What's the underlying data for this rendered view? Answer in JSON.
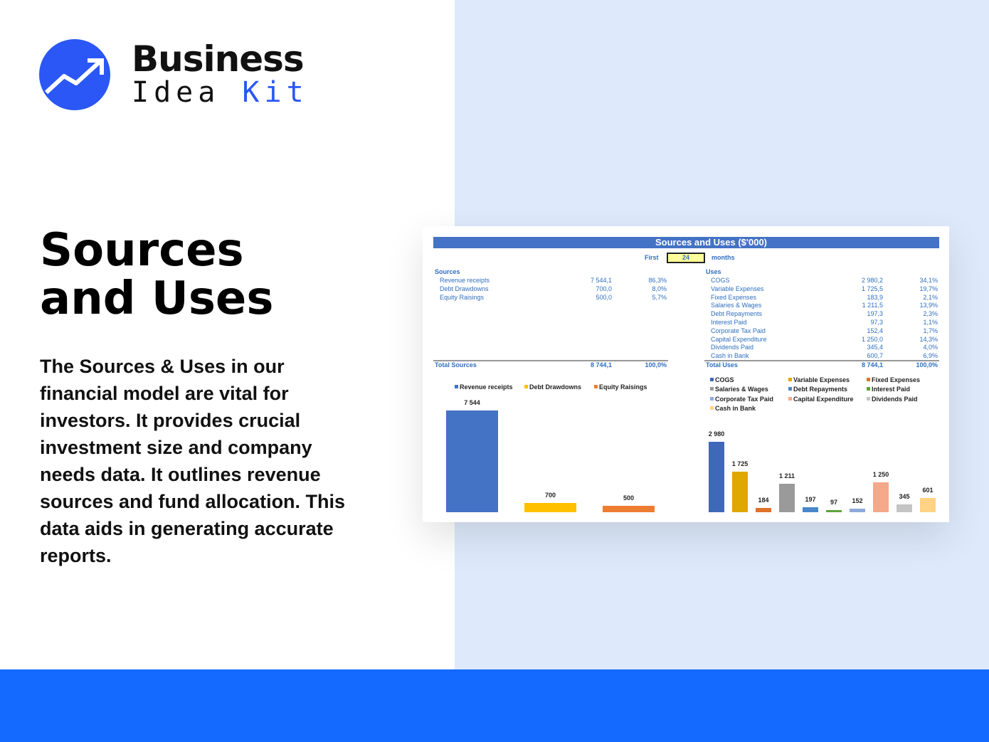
{
  "brand": {
    "line1": "Business",
    "line2a": "Idea",
    "line2b": "Kit",
    "accent": "#2a57f5"
  },
  "heading": {
    "line1": "Sources",
    "line2": "and Uses"
  },
  "description": "The Sources & Uses in our financial model are vital for investors. It provides crucial investment size and company needs data. It outlines revenue sources and fund allocation. This data aids in generating accurate reports.",
  "sheet": {
    "title": "Sources and Uses ($'000)",
    "first_label": "First",
    "months_value": "24",
    "months_label": "months",
    "sources_label": "Sources",
    "sources": [
      {
        "label": "Revenue receipts",
        "value": "7 544,1",
        "pct": "86,3%"
      },
      {
        "label": "Debt Drawdowns",
        "value": "700,0",
        "pct": "8,0%"
      },
      {
        "label": "Equity Raisings",
        "value": "500,0",
        "pct": "5,7%"
      }
    ],
    "total_sources": {
      "label": "Total Sources",
      "value": "8 744,1",
      "pct": "100,0%"
    },
    "uses_label": "Uses",
    "uses": [
      {
        "label": "COGS",
        "value": "2 980,2",
        "pct": "34,1%"
      },
      {
        "label": "Variable Expenses",
        "value": "1 725,5",
        "pct": "19,7%"
      },
      {
        "label": "Fixed Expenses",
        "value": "183,9",
        "pct": "2,1%"
      },
      {
        "label": "Salaries & Wages",
        "value": "1 211,5",
        "pct": "13,9%"
      },
      {
        "label": "Debt Repayments",
        "value": "197,3",
        "pct": "2,3%"
      },
      {
        "label": "Interest Paid",
        "value": "97,3",
        "pct": "1,1%"
      },
      {
        "label": "Corporate Tax Paid",
        "value": "152,4",
        "pct": "1,7%"
      },
      {
        "label": "Capital Expenditure",
        "value": "1 250,0",
        "pct": "14,3%"
      },
      {
        "label": "Dividends Paid",
        "value": "345,4",
        "pct": "4,0%"
      },
      {
        "label": "Cash in Bank",
        "value": "600,7",
        "pct": "6,9%"
      }
    ],
    "total_uses": {
      "label": "Total Uses",
      "value": "8 744,1",
      "pct": "100,0%"
    }
  },
  "chart_data": [
    {
      "type": "bar",
      "categories": [
        "Revenue receipts",
        "Debt Drawdowns",
        "Equity Raisings"
      ],
      "values": [
        7544,
        700,
        500
      ],
      "labels": [
        "7 544",
        "700",
        "500"
      ],
      "colors": [
        "#4472c4",
        "#ffc000",
        "#ed7d31"
      ],
      "legend": "top"
    },
    {
      "type": "bar",
      "categories": [
        "COGS",
        "Variable Expenses",
        "Fixed Expenses",
        "Salaries & Wages",
        "Debt Repayments",
        "Interest Paid",
        "Corporate Tax Paid",
        "Capital Expenditure",
        "Dividends Paid",
        "Cash in Bank"
      ],
      "values": [
        2980,
        1725,
        184,
        1211,
        197,
        97,
        152,
        1250,
        345,
        601
      ],
      "labels": [
        "2 980",
        "1 725",
        "184",
        "1 211",
        "197",
        "97",
        "152",
        "1 250",
        "345",
        "601"
      ],
      "colors": [
        "#3f68b8",
        "#dfa800",
        "#e1702a",
        "#9a9a9a",
        "#4a86c8",
        "#5ea43c",
        "#8ea9dc",
        "#f3a98a",
        "#c4c4c4",
        "#ffd383"
      ],
      "legend": "top"
    }
  ]
}
